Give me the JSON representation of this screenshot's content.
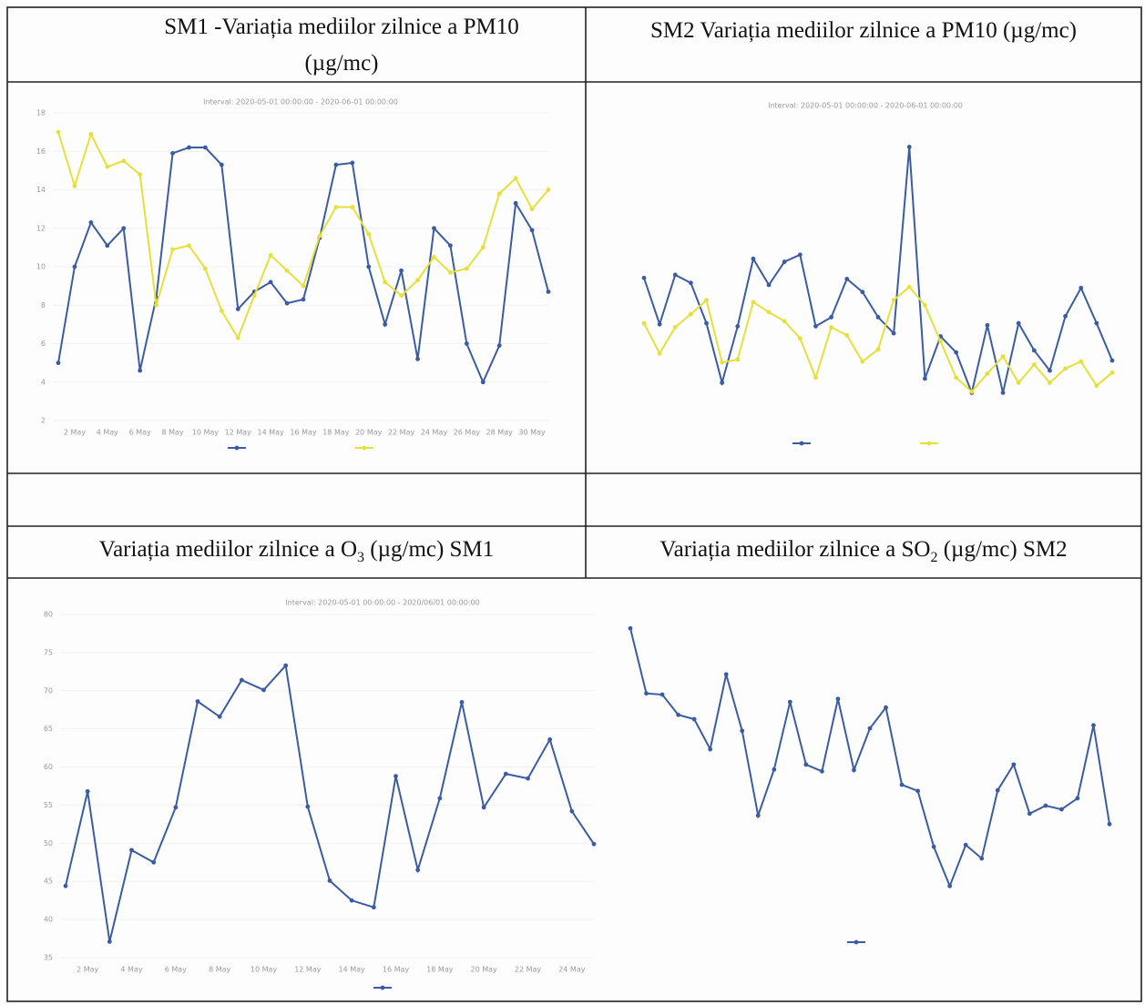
{
  "table": {
    "headers": [
      [
        "SM1 -Variația mediilor zilnice a PM10 (µg/mc)"
      ],
      [
        "SM2 Variația mediilor zilnice a PM10 (µg/mc)"
      ],
      [
        "Variația mediilor zilnice a O",
        "3",
        " (µg/mc) SM1"
      ],
      [
        "Variația mediilor zilnice a SO",
        "2",
        " (µg/mc) SM2"
      ]
    ]
  },
  "chart_data": [
    {
      "type": "line",
      "subtitle": "Interval: 2020-05-01 00:00:00 - 2020-06-01 00:00:00",
      "categories": [
        null,
        "2 May",
        null,
        "4 May",
        null,
        "6 May",
        null,
        "8 May",
        null,
        "10 May",
        null,
        "12 May",
        null,
        "14 May",
        null,
        "16 May",
        null,
        "18 May",
        null,
        "20 May",
        null,
        "22 May",
        null,
        "24 May",
        null,
        "26 May",
        null,
        "28 May",
        null,
        "30 May",
        null
      ],
      "ylim": [
        2,
        18
      ],
      "yticks": [
        2,
        4,
        6,
        8,
        10,
        12,
        14,
        16,
        18
      ],
      "series": [
        {
          "color": "#3b5ca3",
          "values": [
            5.0,
            10.0,
            12.3,
            11.1,
            12.0,
            4.6,
            8.4,
            15.9,
            16.2,
            16.2,
            15.3,
            7.8,
            8.7,
            9.2,
            8.1,
            8.3,
            11.5,
            15.3,
            15.4,
            10.0,
            7.0,
            9.8,
            5.2,
            12.0,
            11.1,
            6.0,
            4.0,
            5.9,
            13.3,
            11.9,
            8.7
          ]
        },
        {
          "color": "#e6e03a",
          "values": [
            17.0,
            14.2,
            16.9,
            15.2,
            15.5,
            14.8,
            8.0,
            10.9,
            11.1,
            9.9,
            7.7,
            6.3,
            8.5,
            10.6,
            9.8,
            9.0,
            11.6,
            13.1,
            13.1,
            11.7,
            9.2,
            8.5,
            9.3,
            10.5,
            9.7,
            9.9,
            11.0,
            13.8,
            14.6,
            13.0,
            14.0
          ]
        }
      ]
    },
    {
      "type": "line",
      "subtitle": "Interval: 2020-05-01 00:00:00 - 2020-06-01 00:00:00",
      "ylim": [
        0,
        30
      ],
      "series": [
        {
          "color": "#3b5ca3",
          "values": [
            13.8,
            9.2,
            14.1,
            13.3,
            9.3,
            3.4,
            9.0,
            15.7,
            13.1,
            15.4,
            16.1,
            9.0,
            9.9,
            13.7,
            12.4,
            9.9,
            8.3,
            26.8,
            3.8,
            8.0,
            6.4,
            2.4,
            9.1,
            2.4,
            9.3,
            6.6,
            4.6,
            10.0,
            12.8,
            9.3,
            5.6
          ]
        },
        {
          "color": "#e6e03a",
          "values": [
            9.3,
            6.3,
            8.9,
            10.2,
            11.6,
            5.4,
            5.7,
            11.4,
            10.4,
            9.5,
            7.8,
            3.9,
            8.9,
            8.1,
            5.5,
            6.7,
            11.6,
            12.9,
            11.1,
            7.5,
            3.9,
            2.5,
            4.3,
            6.0,
            3.4,
            5.2,
            3.4,
            4.8,
            5.5,
            3.1,
            4.4
          ]
        }
      ]
    },
    {
      "type": "line",
      "subtitle": "Interval: 2020-05-01 00:00:00 - 2020/06/01 00:00:00",
      "categories": [
        null,
        "2 May",
        null,
        "4 May",
        null,
        "6 May",
        null,
        "8 May",
        null,
        "10 May",
        null,
        "12 May",
        null,
        "14 May",
        null,
        "16 May",
        null,
        "18 May",
        null,
        "20 May",
        null,
        "22 May",
        null,
        "24 May",
        null
      ],
      "ylim": [
        35,
        80
      ],
      "yticks": [
        35,
        40,
        45,
        50,
        55,
        60,
        65,
        70,
        75,
        80
      ],
      "series": [
        {
          "color": "#3b5ca3",
          "values": [
            44.4,
            56.8,
            37.1,
            49.1,
            47.5,
            54.7,
            68.6,
            66.6,
            71.4,
            70.1,
            73.3,
            54.8,
            45.1,
            42.5,
            41.6,
            58.8,
            46.5,
            55.9,
            68.5,
            54.7,
            59.1,
            58.5,
            63.6,
            54.2,
            49.9
          ]
        }
      ]
    },
    {
      "type": "line",
      "ylim": [
        0,
        5
      ],
      "series": [
        {
          "color": "#3b5ca3",
          "values": [
            4.67,
            3.61,
            3.59,
            3.26,
            3.19,
            2.7,
            3.92,
            3.0,
            1.62,
            2.37,
            3.47,
            2.45,
            2.34,
            3.52,
            2.36,
            3.04,
            3.38,
            2.12,
            2.02,
            1.11,
            0.47,
            1.14,
            0.92,
            2.03,
            2.45,
            1.65,
            1.78,
            1.72,
            1.9,
            3.09,
            1.48
          ]
        }
      ]
    }
  ]
}
